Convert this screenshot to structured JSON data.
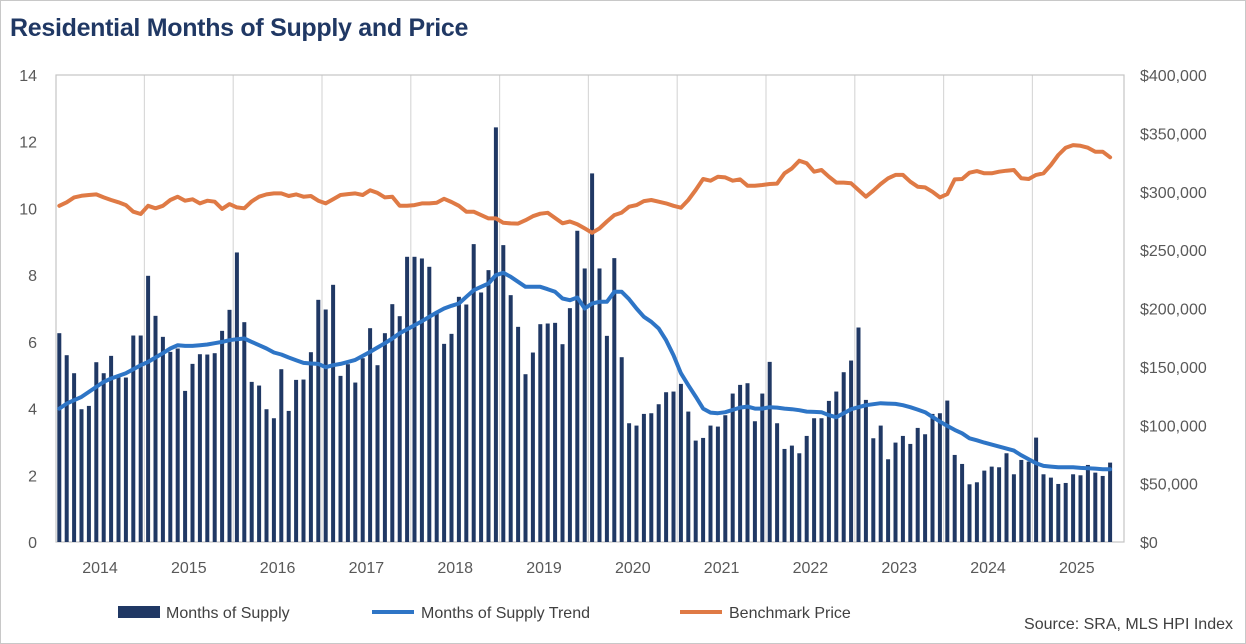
{
  "chart_data": {
    "type": "bar+line",
    "title": "Residential Months of Supply and Price",
    "source": "Source: SRA, MLS HPI Index",
    "x_tick_labels": [
      "2014",
      "2015",
      "2016",
      "2017",
      "2018",
      "2019",
      "2020",
      "2021",
      "2022",
      "2023",
      "2024",
      "2025"
    ],
    "y_left": {
      "ylim": [
        0,
        14
      ],
      "ticks": [
        "0",
        "2",
        "4",
        "6",
        "8",
        "10",
        "12",
        "14"
      ]
    },
    "y_right": {
      "ylim": [
        0,
        400000
      ],
      "ticks": [
        "$0",
        "$50,000",
        "$100,000",
        "$150,000",
        "$200,000",
        "$250,000",
        "$300,000",
        "$350,000",
        "$400,000"
      ]
    },
    "grid": "vertical at year boundaries",
    "legend_position": "bottom",
    "series": [
      {
        "name": "Months of Supply",
        "type": "bar",
        "axis": "left",
        "color": "#203864",
        "values": [
          6.26,
          5.6,
          5.06,
          3.98,
          4.08,
          5.39,
          5.06,
          5.58,
          4.94,
          4.93,
          6.19,
          6.19,
          7.98,
          6.78,
          6.15,
          5.7,
          5.8,
          4.53,
          5.34,
          5.63,
          5.62,
          5.66,
          6.33,
          6.96,
          8.68,
          6.59,
          4.8,
          4.69,
          3.98,
          3.71,
          5.18,
          3.93,
          4.86,
          4.87,
          5.69,
          7.26,
          6.97,
          7.71,
          4.98,
          5.33,
          4.78,
          5.51,
          6.41,
          5.3,
          6.26,
          7.13,
          6.77,
          8.55,
          8.55,
          8.5,
          8.25,
          6.85,
          5.94,
          6.24,
          7.35,
          7.12,
          8.93,
          7.48,
          8.15,
          12.43,
          8.9,
          7.4,
          6.45,
          5.03,
          5.68,
          6.53,
          6.55,
          6.57,
          5.93,
          7.01,
          9.33,
          8.2,
          11.05,
          8.2,
          6.18,
          8.51,
          5.54,
          3.56,
          3.49,
          3.84,
          3.86,
          4.13,
          4.49,
          4.51,
          4.74,
          3.91,
          3.04,
          3.12,
          3.49,
          3.46,
          3.8,
          4.45,
          4.71,
          4.76,
          3.62,
          4.45,
          5.4,
          3.56,
          2.79,
          2.89,
          2.66,
          3.18,
          3.71,
          3.71,
          4.23,
          4.51,
          5.09,
          5.44,
          6.43,
          4.26,
          3.11,
          3.49,
          2.48,
          2.98,
          3.18,
          2.94,
          3.42,
          3.23,
          3.84,
          3.86,
          4.24,
          2.61,
          2.34,
          1.73,
          1.79,
          2.14,
          2.26,
          2.24,
          2.66,
          2.03,
          2.46,
          2.41,
          3.13,
          2.03,
          1.93,
          1.74,
          1.77,
          2.03,
          2.0,
          2.31,
          2.08,
          1.98,
          2.38
        ]
      },
      {
        "name": "Months of Supply Trend",
        "type": "line",
        "axis": "left",
        "color": "#2E75C6",
        "values": [
          4.0,
          4.15,
          4.25,
          4.35,
          4.5,
          4.65,
          4.8,
          4.9,
          4.98,
          5.06,
          5.18,
          5.3,
          5.4,
          5.53,
          5.66,
          5.8,
          5.9,
          5.88,
          5.88,
          5.9,
          5.92,
          5.96,
          6.0,
          6.05,
          6.08,
          6.1,
          6.0,
          5.9,
          5.8,
          5.68,
          5.62,
          5.53,
          5.45,
          5.37,
          5.35,
          5.34,
          5.24,
          5.3,
          5.34,
          5.4,
          5.46,
          5.58,
          5.7,
          5.83,
          5.96,
          6.1,
          6.26,
          6.38,
          6.5,
          6.62,
          6.75,
          6.88,
          7.0,
          7.08,
          7.15,
          7.35,
          7.55,
          7.65,
          7.75,
          8.0,
          8.07,
          7.95,
          7.8,
          7.65,
          7.65,
          7.65,
          7.58,
          7.5,
          7.3,
          7.25,
          7.33,
          7.0,
          7.15,
          7.2,
          7.2,
          7.5,
          7.5,
          7.28,
          7.0,
          6.75,
          6.6,
          6.4,
          6.05,
          5.6,
          5.06,
          4.7,
          4.36,
          4.0,
          3.88,
          3.86,
          3.89,
          3.96,
          4.03,
          4.06,
          4.0,
          4.0,
          4.04,
          4.03,
          4.0,
          3.98,
          3.95,
          3.91,
          3.9,
          3.89,
          3.8,
          3.74,
          3.86,
          3.98,
          4.04,
          4.1,
          4.13,
          4.16,
          4.15,
          4.14,
          4.1,
          4.04,
          3.97,
          3.89,
          3.75,
          3.61,
          3.48,
          3.36,
          3.26,
          3.11,
          3.05,
          2.98,
          2.92,
          2.86,
          2.8,
          2.74,
          2.6,
          2.48,
          2.36,
          2.28,
          2.26,
          2.24,
          2.24,
          2.24,
          2.22,
          2.21,
          2.2,
          2.18,
          2.18
        ]
      },
      {
        "name": "Benchmark Price",
        "type": "line",
        "axis": "right",
        "color": "#DF7A45",
        "values": [
          288000,
          291000,
          295200,
          296500,
          297200,
          297700,
          295200,
          292900,
          291000,
          288600,
          282900,
          280900,
          288000,
          285800,
          288000,
          292900,
          295800,
          292300,
          293500,
          290000,
          292300,
          291500,
          285300,
          289400,
          286600,
          285800,
          291700,
          295800,
          297700,
          298600,
          298600,
          296400,
          297700,
          295800,
          296400,
          292300,
          290000,
          293500,
          297200,
          298000,
          298600,
          297200,
          301200,
          299000,
          295200,
          295800,
          288000,
          288000,
          288600,
          290000,
          290000,
          290500,
          294000,
          291200,
          288000,
          282900,
          282900,
          280000,
          277200,
          277200,
          273400,
          272900,
          272700,
          275600,
          279100,
          281200,
          282000,
          277500,
          273000,
          274500,
          272200,
          268600,
          264800,
          268600,
          274500,
          280000,
          282100,
          287200,
          288600,
          292000,
          292900,
          291500,
          290000,
          288000,
          286300,
          292900,
          301500,
          310900,
          309500,
          312900,
          312300,
          309500,
          310600,
          305200,
          305200,
          305800,
          306600,
          307000,
          315800,
          320000,
          326600,
          324400,
          317200,
          318600,
          312900,
          307800,
          307800,
          307200,
          301500,
          295800,
          300900,
          306600,
          311500,
          314400,
          314400,
          308600,
          304300,
          303700,
          300000,
          295200,
          298000,
          310600,
          310900,
          316300,
          317700,
          315800,
          315800,
          317200,
          318000,
          318600,
          311500,
          310900,
          314400,
          315800,
          322900,
          331500,
          337700,
          340000,
          339400,
          337700,
          334300,
          334300,
          329500
        ]
      }
    ]
  }
}
